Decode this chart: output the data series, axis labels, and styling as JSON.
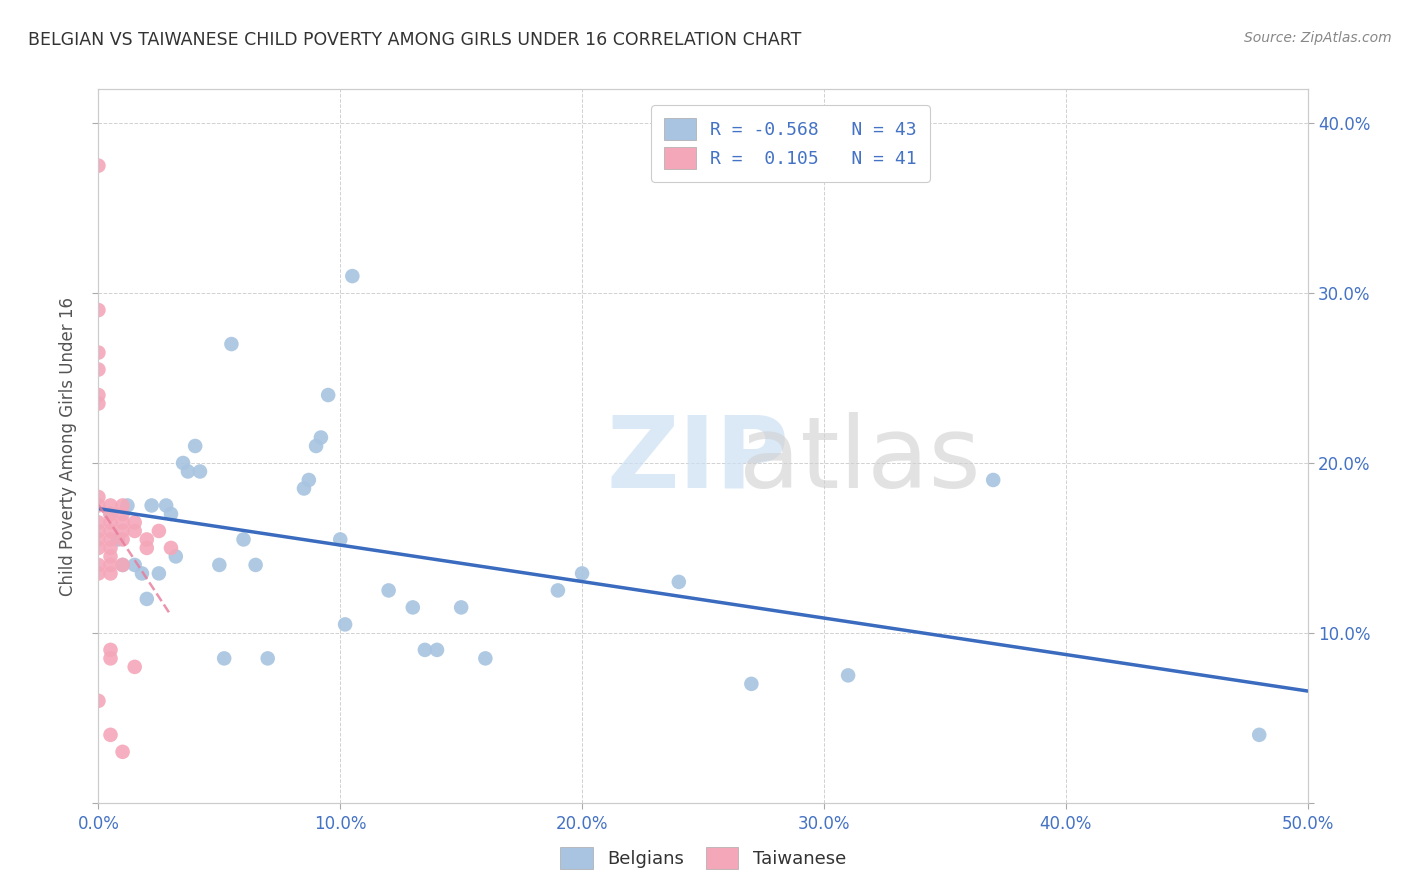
{
  "title": "BELGIAN VS TAIWANESE CHILD POVERTY AMONG GIRLS UNDER 16 CORRELATION CHART",
  "source": "Source: ZipAtlas.com",
  "ylabel": "Child Poverty Among Girls Under 16",
  "xlim": [
    0.0,
    0.5
  ],
  "ylim": [
    0.0,
    0.42
  ],
  "xticks": [
    0.0,
    0.1,
    0.2,
    0.3,
    0.4,
    0.5
  ],
  "yticks": [
    0.0,
    0.1,
    0.2,
    0.3,
    0.4
  ],
  "xticklabels": [
    "0.0%",
    "10.0%",
    "20.0%",
    "30.0%",
    "40.0%",
    "50.0%"
  ],
  "yticklabels_right": [
    "",
    "10.0%",
    "20.0%",
    "30.0%",
    "40.0%"
  ],
  "legend_r_belgian": "-0.568",
  "legend_n_belgian": "43",
  "legend_r_taiwanese": "0.105",
  "legend_n_taiwanese": "41",
  "belgian_color": "#a8c4e0",
  "taiwanese_color": "#f4a7b9",
  "belgian_line_color": "#3a6bbf",
  "taiwanese_line_color": "#e87a99",
  "background_color": "#ffffff",
  "belgian_x": [
    0.005,
    0.008,
    0.01,
    0.012,
    0.015,
    0.018,
    0.02,
    0.022,
    0.025,
    0.028,
    0.03,
    0.032,
    0.035,
    0.037,
    0.04,
    0.042,
    0.05,
    0.052,
    0.055,
    0.06,
    0.065,
    0.07,
    0.085,
    0.087,
    0.09,
    0.092,
    0.095,
    0.1,
    0.102,
    0.105,
    0.12,
    0.13,
    0.135,
    0.14,
    0.15,
    0.16,
    0.19,
    0.2,
    0.24,
    0.27,
    0.31,
    0.37,
    0.48
  ],
  "belgian_y": [
    0.17,
    0.155,
    0.14,
    0.175,
    0.14,
    0.135,
    0.12,
    0.175,
    0.135,
    0.175,
    0.17,
    0.145,
    0.2,
    0.195,
    0.21,
    0.195,
    0.14,
    0.085,
    0.27,
    0.155,
    0.14,
    0.085,
    0.185,
    0.19,
    0.21,
    0.215,
    0.24,
    0.155,
    0.105,
    0.31,
    0.125,
    0.115,
    0.09,
    0.09,
    0.115,
    0.085,
    0.125,
    0.135,
    0.13,
    0.07,
    0.075,
    0.19,
    0.04
  ],
  "taiwanese_x": [
    0.0,
    0.0,
    0.0,
    0.0,
    0.0,
    0.0,
    0.0,
    0.0,
    0.0,
    0.0,
    0.0,
    0.0,
    0.0,
    0.0,
    0.0,
    0.005,
    0.005,
    0.005,
    0.005,
    0.005,
    0.005,
    0.005,
    0.005,
    0.005,
    0.005,
    0.005,
    0.005,
    0.01,
    0.01,
    0.01,
    0.01,
    0.01,
    0.01,
    0.01,
    0.015,
    0.015,
    0.015,
    0.02,
    0.02,
    0.025,
    0.03
  ],
  "taiwanese_y": [
    0.375,
    0.29,
    0.265,
    0.255,
    0.24,
    0.235,
    0.18,
    0.175,
    0.165,
    0.16,
    0.155,
    0.15,
    0.14,
    0.135,
    0.06,
    0.175,
    0.17,
    0.165,
    0.16,
    0.155,
    0.15,
    0.145,
    0.14,
    0.135,
    0.09,
    0.085,
    0.04,
    0.175,
    0.17,
    0.165,
    0.16,
    0.155,
    0.14,
    0.03,
    0.165,
    0.16,
    0.08,
    0.155,
    0.15,
    0.16,
    0.15
  ]
}
